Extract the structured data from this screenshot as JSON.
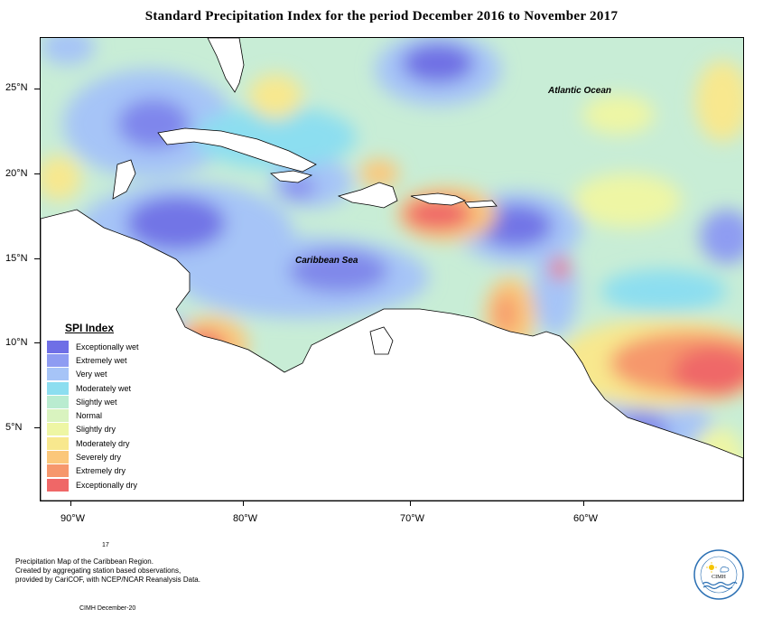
{
  "title": "Standard Precipitation Index for the period December 2016 to November 2017",
  "map": {
    "ocean_labels": {
      "atlantic": "Atlantic Ocean",
      "caribbean": "Caribbean Sea"
    },
    "lat_labels": [
      "25°N",
      "20°N",
      "15°N",
      "10°N",
      "5°N"
    ],
    "lon_labels": [
      "90°W",
      "80°W",
      "70°W",
      "60°W"
    ]
  },
  "legend": {
    "title": "SPI Index",
    "items": [
      {
        "label": "Exceptionally wet",
        "color": "#6f6fe6"
      },
      {
        "label": "Extremely wet",
        "color": "#8e9cf2"
      },
      {
        "label": "Very wet",
        "color": "#a6c4f7"
      },
      {
        "label": "Moderately wet",
        "color": "#8cdef0"
      },
      {
        "label": "Slightly wet",
        "color": "#b9ecd0"
      },
      {
        "label": "Normal",
        "color": "#d9f3bf"
      },
      {
        "label": "Slightly dry",
        "color": "#eef6a4"
      },
      {
        "label": "Moderately dry",
        "color": "#f8e88e"
      },
      {
        "label": "Severely dry",
        "color": "#fbc77a"
      },
      {
        "label": "Extremely dry",
        "color": "#f6976c"
      },
      {
        "label": "Exceptionally dry",
        "color": "#ef6767"
      }
    ]
  },
  "credits": {
    "small_number": "17",
    "lines": [
      "Precipitation Map of the Caribbean Region.",
      "Created by aggregating station based observations,",
      "provided by CariCOF, with NCEP/NCAR Reanalysis Data."
    ],
    "date": "CIMH December-20"
  },
  "logo": {
    "text": "CIMH"
  }
}
